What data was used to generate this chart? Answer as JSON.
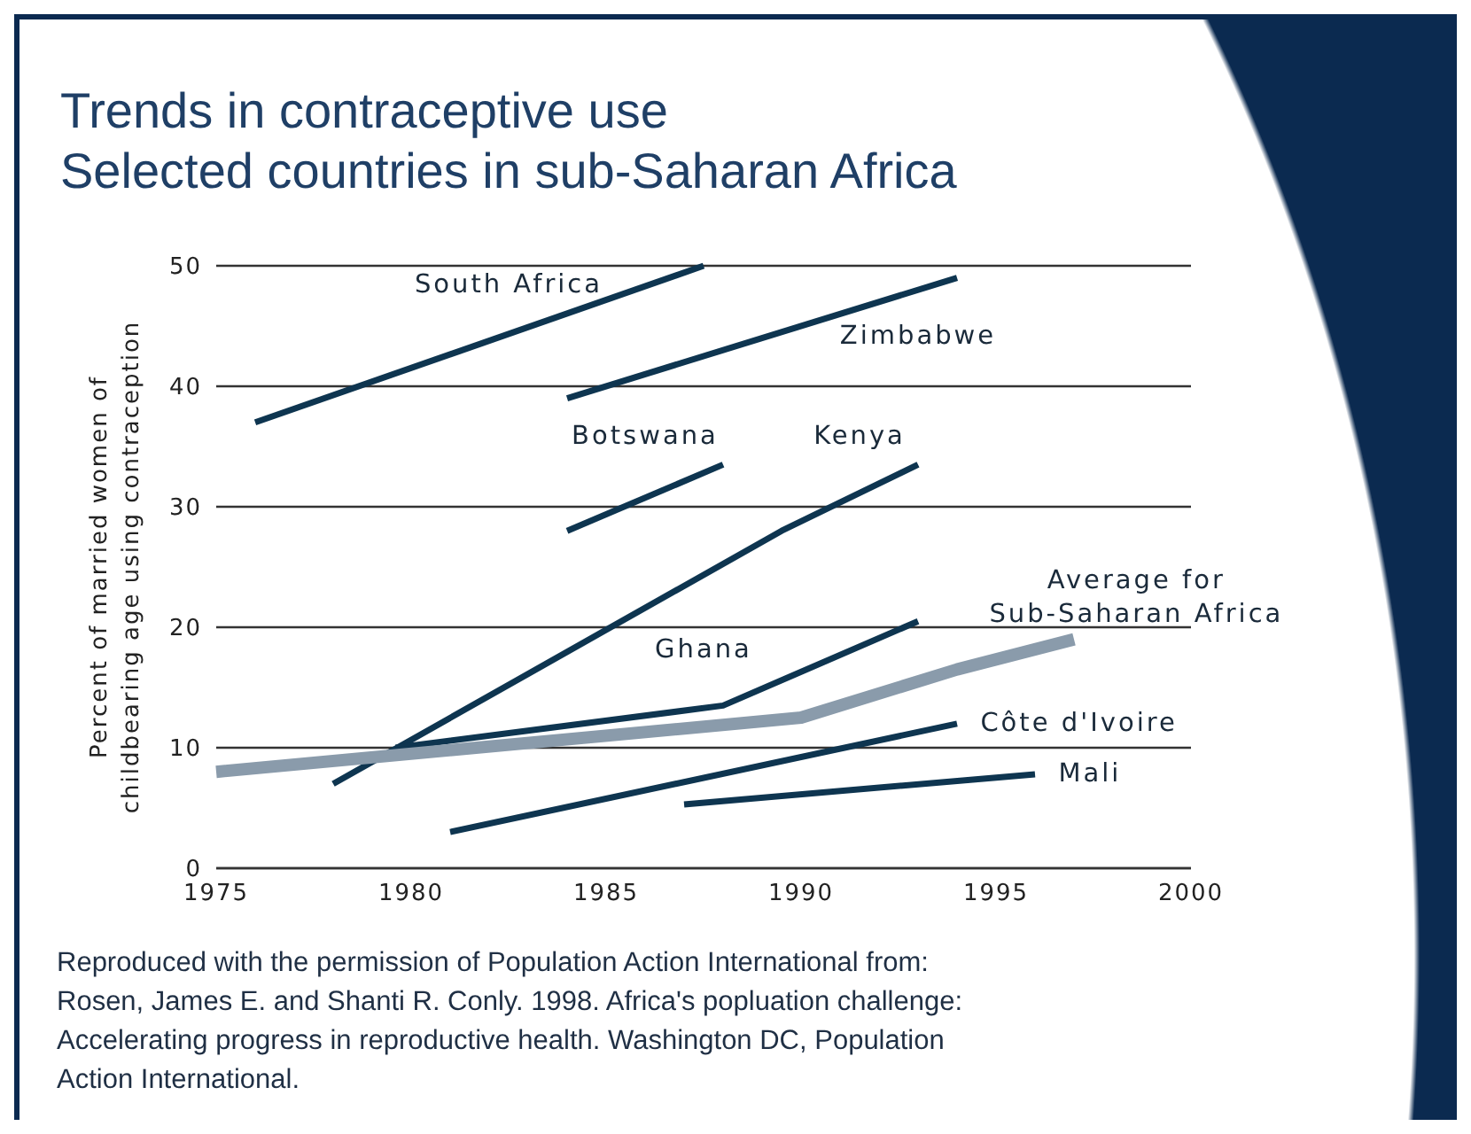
{
  "chart_data": {
    "type": "line",
    "title": "Trends in contraceptive use",
    "subtitle": "Selected countries in sub-Saharan Africa",
    "ylabel": "Percent of married women of childbearing age using contraception",
    "xlim": [
      1975,
      2000
    ],
    "xticks": [
      1975,
      1980,
      1985,
      1990,
      1995,
      2000
    ],
    "ylim": [
      0,
      50
    ],
    "yticks": [
      0,
      10,
      20,
      30,
      40,
      50
    ],
    "grid": "y",
    "legend": false,
    "marker": "none",
    "line_style": "solid",
    "series": [
      {
        "name": "South Africa",
        "color": "#0e3550",
        "x": [
          1976,
          1987.5
        ],
        "values": [
          37,
          50
        ]
      },
      {
        "name": "Zimbabwe",
        "color": "#0e3550",
        "x": [
          1984,
          1994
        ],
        "values": [
          39,
          49
        ]
      },
      {
        "name": "Botswana",
        "color": "#0e3550",
        "x": [
          1984,
          1988
        ],
        "values": [
          28,
          33.5
        ]
      },
      {
        "name": "Kenya",
        "color": "#0e3550",
        "x": [
          1978,
          1989.5,
          1993
        ],
        "values": [
          7,
          28,
          33.5
        ]
      },
      {
        "name": "Ghana",
        "color": "#0e3550",
        "x": [
          1979.6,
          1988,
          1993
        ],
        "values": [
          10,
          13.5,
          20.5
        ]
      },
      {
        "name": "Average for Sub-Saharan Africa",
        "color": "#8a9bab",
        "x": [
          1975,
          1990,
          1994,
          1997
        ],
        "values": [
          8,
          12.5,
          16.5,
          19
        ]
      },
      {
        "name": "Côte d'Ivoire",
        "color": "#0e3550",
        "x": [
          1981,
          1994
        ],
        "values": [
          3,
          12
        ]
      },
      {
        "name": "Mali",
        "color": "#0e3550",
        "x": [
          1987,
          1996
        ],
        "values": [
          5.3,
          7.8
        ]
      }
    ],
    "annotations": [
      "Reproduced with the permission of  Population Action International from: Rosen, James E. and Shanti R. Conly. 1998. Africa's popluation challenge: Accelerating progress in reproductive health. Washington DC, Population Action International."
    ]
  }
}
